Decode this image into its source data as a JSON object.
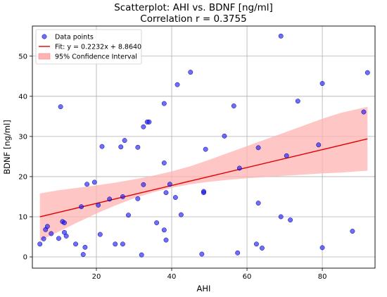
{
  "chart_data": {
    "type": "scatter",
    "title": "Scatterplot: AHI vs. BDNF [ng/ml]",
    "subtitle": "Correlation r = 0.3755",
    "xlabel": "AHI",
    "ylabel": "BDNF [ng/ml]",
    "xlim": [
      3,
      94
    ],
    "ylim": [
      -2.8,
      57.5
    ],
    "xticks": [
      20,
      40,
      60,
      80
    ],
    "yticks": [
      0,
      10,
      20,
      30,
      40,
      50
    ],
    "grid": true,
    "legend_position": "top-left",
    "legend": [
      {
        "label": "Data points",
        "kind": "marker",
        "color": "#1515f0"
      },
      {
        "label": "Fit: y = 0.2232x + 8.8640",
        "kind": "line",
        "color": "#e00000"
      },
      {
        "label": "95% Confidence Interval",
        "kind": "patch",
        "color": "#ffb3b3"
      }
    ],
    "series": [
      {
        "name": "Data points",
        "color": "#1515f0",
        "points": [
          [
            5,
            3.2
          ],
          [
            6,
            4.5
          ],
          [
            6.5,
            6.8
          ],
          [
            7,
            7.6
          ],
          [
            8,
            5.8
          ],
          [
            10,
            4.6
          ],
          [
            10.5,
            37.4
          ],
          [
            11,
            8.8
          ],
          [
            11.5,
            8.5
          ],
          [
            11.5,
            6.1
          ],
          [
            12,
            5.2
          ],
          [
            14.5,
            3.2
          ],
          [
            16,
            12.5
          ],
          [
            16.5,
            0.6
          ],
          [
            17,
            2.4
          ],
          [
            17.5,
            18.1
          ],
          [
            19.5,
            18.6
          ],
          [
            20.5,
            12.9
          ],
          [
            21,
            5.6
          ],
          [
            21.5,
            27.5
          ],
          [
            23.5,
            14.4
          ],
          [
            25,
            3.2
          ],
          [
            26.5,
            27.4
          ],
          [
            27,
            3.2
          ],
          [
            27,
            15.0
          ],
          [
            27.5,
            29.0
          ],
          [
            28.5,
            10.4
          ],
          [
            31,
            14.5
          ],
          [
            31,
            27.3
          ],
          [
            32,
            0.5
          ],
          [
            32.5,
            18.0
          ],
          [
            32.5,
            32.4
          ],
          [
            33.5,
            33.6
          ],
          [
            34,
            33.6
          ],
          [
            36,
            8.5
          ],
          [
            38,
            6.7
          ],
          [
            38,
            23.4
          ],
          [
            38,
            38.2
          ],
          [
            38.5,
            16.0
          ],
          [
            38.5,
            4.2
          ],
          [
            39.5,
            18.1
          ],
          [
            41,
            14.8
          ],
          [
            41.5,
            42.9
          ],
          [
            42.5,
            10.5
          ],
          [
            45,
            46.0
          ],
          [
            48,
            0.7
          ],
          [
            48.5,
            16.0
          ],
          [
            48.5,
            16.3
          ],
          [
            49,
            26.8
          ],
          [
            54,
            30.1
          ],
          [
            56.5,
            37.6
          ],
          [
            57.5,
            1.0
          ],
          [
            58,
            22.1
          ],
          [
            62.5,
            3.2
          ],
          [
            63,
            27.2
          ],
          [
            63,
            13.4
          ],
          [
            64,
            2.2
          ],
          [
            69,
            55.0
          ],
          [
            69,
            10.0
          ],
          [
            70.5,
            25.2
          ],
          [
            71.5,
            9.2
          ],
          [
            73.5,
            38.8
          ],
          [
            79,
            27.9
          ],
          [
            80,
            43.2
          ],
          [
            80,
            2.3
          ],
          [
            88,
            6.4
          ],
          [
            91,
            36.1
          ],
          [
            92,
            45.9
          ]
        ]
      }
    ],
    "fit": {
      "label": "Fit: y = 0.2232x + 8.8640",
      "slope": 0.2232,
      "intercept": 8.864,
      "x_range": [
        5,
        92
      ],
      "color": "#e00000"
    },
    "confidence_band": {
      "label": "95% Confidence Interval",
      "color": "#ffb3b3",
      "x": [
        5,
        10,
        15,
        20,
        25,
        30,
        35,
        40,
        45,
        50,
        55,
        60,
        65,
        70,
        75,
        80,
        85,
        92
      ],
      "lower": [
        4.0,
        6.3,
        8.6,
        10.8,
        12.8,
        14.6,
        16.1,
        17.2,
        18.1,
        18.7,
        19.2,
        19.6,
        19.9,
        20.2,
        20.5,
        20.8,
        21.0,
        21.5
      ],
      "upper": [
        15.8,
        16.6,
        17.2,
        17.8,
        18.5,
        19.3,
        20.2,
        21.3,
        22.6,
        24.2,
        25.9,
        27.6,
        29.3,
        31.0,
        32.7,
        34.4,
        35.9,
        37.4
      ]
    }
  }
}
